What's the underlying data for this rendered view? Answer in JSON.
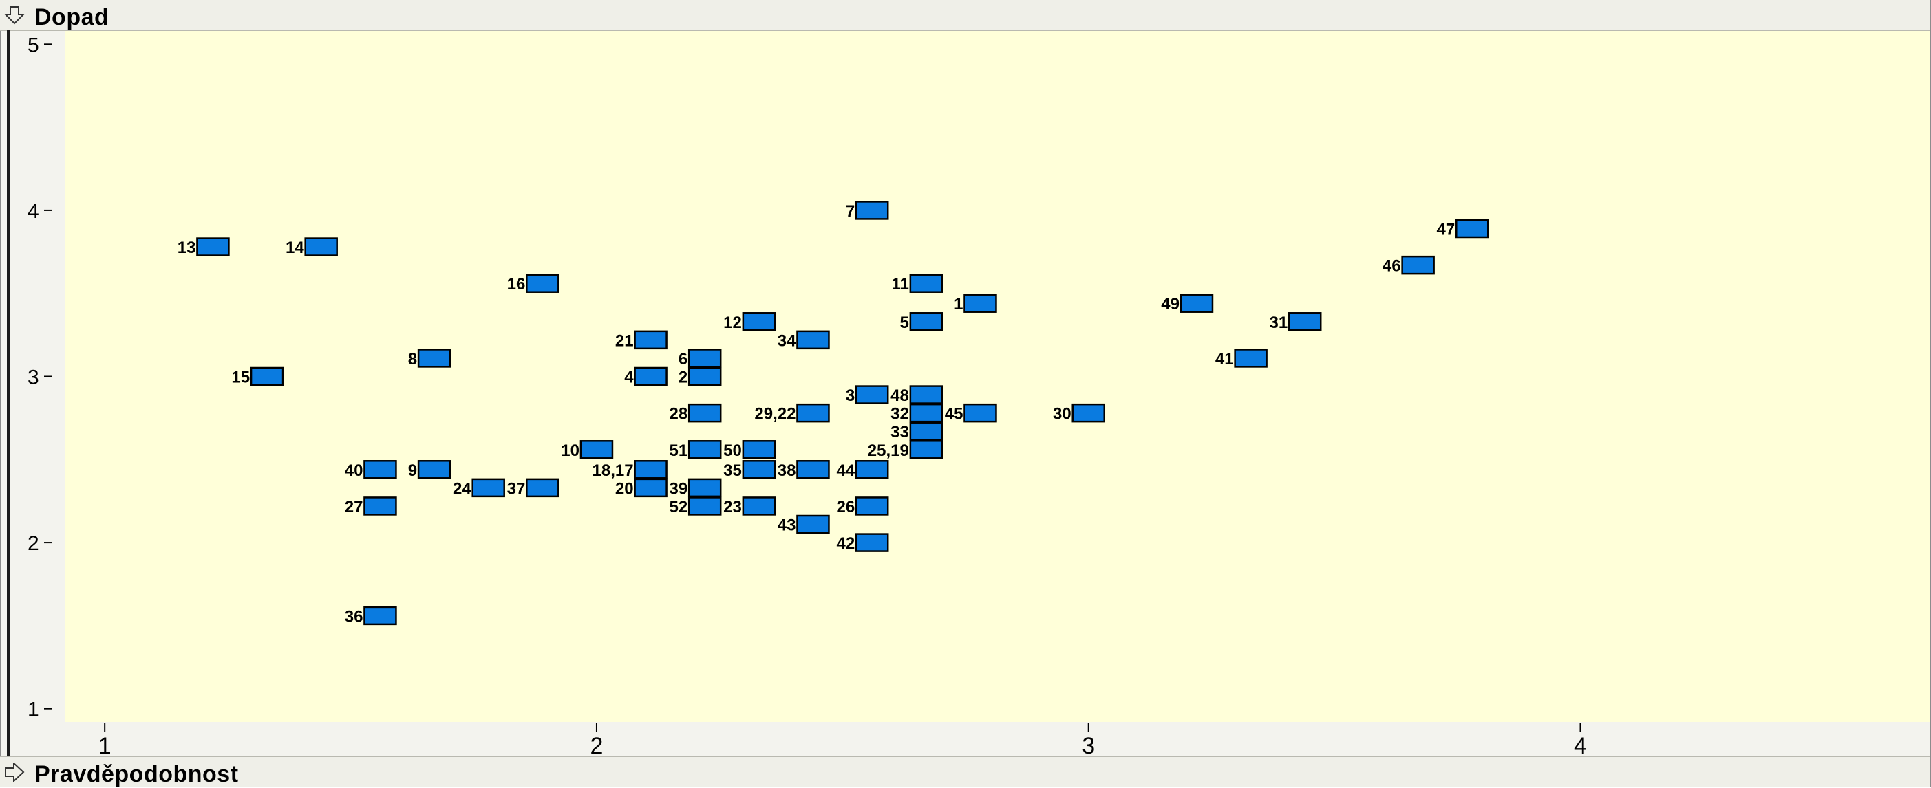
{
  "top_header": {
    "label": "Dopad"
  },
  "bottom_header": {
    "label": "Pravděpodobnost"
  },
  "colors": {
    "plot_bg": "#ffffd9",
    "marker_fill": "#0a7be0",
    "marker_stroke": "#000000"
  },
  "icons": {
    "top": "down-arrow-icon",
    "bottom": "right-arrow-icon"
  },
  "chart_data": {
    "type": "scatter",
    "xlabel": "Pravděpodobnost",
    "ylabel": "Dopad",
    "xlim": [
      0.92,
      4.71
    ],
    "ylim": [
      0.92,
      5.08
    ],
    "xticks": [
      1,
      2,
      3,
      4
    ],
    "yticks": [
      1,
      2,
      3,
      4,
      5
    ],
    "points": [
      {
        "label": "13",
        "x": 1.22,
        "y": 3.78
      },
      {
        "label": "14",
        "x": 1.44,
        "y": 3.78
      },
      {
        "label": "15",
        "x": 1.33,
        "y": 3.0
      },
      {
        "label": "16",
        "x": 1.89,
        "y": 3.56
      },
      {
        "label": "8",
        "x": 1.67,
        "y": 3.11
      },
      {
        "label": "40",
        "x": 1.56,
        "y": 2.44
      },
      {
        "label": "9",
        "x": 1.67,
        "y": 2.44
      },
      {
        "label": "27",
        "x": 1.56,
        "y": 2.22
      },
      {
        "label": "24",
        "x": 1.78,
        "y": 2.33
      },
      {
        "label": "37",
        "x": 1.89,
        "y": 2.33
      },
      {
        "label": "36",
        "x": 1.56,
        "y": 1.56
      },
      {
        "label": "10",
        "x": 2.0,
        "y": 2.56
      },
      {
        "label": "21",
        "x": 2.11,
        "y": 3.22
      },
      {
        "label": "4",
        "x": 2.11,
        "y": 3.0
      },
      {
        "label": "18,17",
        "x": 2.11,
        "y": 2.44
      },
      {
        "label": "20",
        "x": 2.11,
        "y": 2.33
      },
      {
        "label": "6",
        "x": 2.22,
        "y": 3.11
      },
      {
        "label": "2",
        "x": 2.22,
        "y": 3.0
      },
      {
        "label": "28",
        "x": 2.22,
        "y": 2.78
      },
      {
        "label": "51",
        "x": 2.22,
        "y": 2.56
      },
      {
        "label": "39",
        "x": 2.22,
        "y": 2.33
      },
      {
        "label": "52",
        "x": 2.22,
        "y": 2.22
      },
      {
        "label": "12",
        "x": 2.33,
        "y": 3.33
      },
      {
        "label": "50",
        "x": 2.33,
        "y": 2.56
      },
      {
        "label": "35",
        "x": 2.33,
        "y": 2.44
      },
      {
        "label": "23",
        "x": 2.33,
        "y": 2.22
      },
      {
        "label": "34",
        "x": 2.44,
        "y": 3.22
      },
      {
        "label": "29,22",
        "x": 2.44,
        "y": 2.78
      },
      {
        "label": "38",
        "x": 2.44,
        "y": 2.44
      },
      {
        "label": "43",
        "x": 2.44,
        "y": 2.11
      },
      {
        "label": "7",
        "x": 2.56,
        "y": 4.0
      },
      {
        "label": "3",
        "x": 2.56,
        "y": 2.89
      },
      {
        "label": "44",
        "x": 2.56,
        "y": 2.44
      },
      {
        "label": "26",
        "x": 2.56,
        "y": 2.22
      },
      {
        "label": "42",
        "x": 2.56,
        "y": 2.0
      },
      {
        "label": "11",
        "x": 2.67,
        "y": 3.56
      },
      {
        "label": "5",
        "x": 2.67,
        "y": 3.33
      },
      {
        "label": "48",
        "x": 2.67,
        "y": 2.89
      },
      {
        "label": "32",
        "x": 2.67,
        "y": 2.78
      },
      {
        "label": "33",
        "x": 2.67,
        "y": 2.67
      },
      {
        "label": "25,19",
        "x": 2.67,
        "y": 2.56
      },
      {
        "label": "1",
        "x": 2.78,
        "y": 3.44
      },
      {
        "label": "45",
        "x": 2.78,
        "y": 2.78
      },
      {
        "label": "30",
        "x": 3.0,
        "y": 2.78
      },
      {
        "label": "49",
        "x": 3.22,
        "y": 3.44
      },
      {
        "label": "41",
        "x": 3.33,
        "y": 3.11
      },
      {
        "label": "31",
        "x": 3.44,
        "y": 3.33
      },
      {
        "label": "46",
        "x": 3.67,
        "y": 3.67
      },
      {
        "label": "47",
        "x": 3.78,
        "y": 3.89
      }
    ]
  }
}
